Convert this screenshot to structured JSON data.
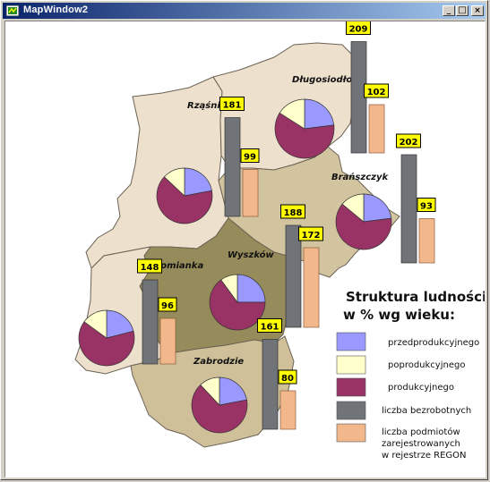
{
  "window": {
    "title": "MapWindow2",
    "buttons": {
      "minimize": "_",
      "maximize": "□",
      "close": "×"
    }
  },
  "map": {
    "colors": {
      "rzasnik": "#ede0cc",
      "dlugosiodlo": "#ede0cc",
      "somianka": "#ede0cc",
      "branszczyk": "#d3c4a0",
      "zabrodzie": "#cfc09a",
      "wyszkow": "#968b5a",
      "pre": "#9999ff",
      "post": "#ffffcc",
      "prod": "#993366",
      "unemp": "#707478",
      "regon": "#f2b88c",
      "label_bg": "#ffff00"
    },
    "regions": [
      {
        "name": "Rząśnik",
        "pie": [
          22,
          13,
          65
        ],
        "unemployed": 181,
        "regon": 99
      },
      {
        "name": "Długosiodło",
        "pie": [
          23,
          16,
          61
        ],
        "unemployed": 209,
        "regon": 102
      },
      {
        "name": "Brańszczyk",
        "pie": [
          23,
          14,
          63
        ],
        "unemployed": 202,
        "regon": 93
      },
      {
        "name": "Wyszków",
        "pie": [
          25,
          10,
          65
        ],
        "unemployed": 188,
        "regon": 172
      },
      {
        "name": "Somianka",
        "pie": [
          21,
          15,
          64
        ],
        "unemployed": 148,
        "regon": 96
      },
      {
        "name": "Zabrodzie",
        "pie": [
          22,
          12,
          66
        ],
        "unemployed": 161,
        "regon": 80
      }
    ]
  },
  "legend": {
    "title_line1": "Struktura ludności",
    "title_line2": "w % wg wieku:",
    "items": {
      "pre": "przedprodukcyjnego",
      "post": "poprodukcyjnego",
      "prod": "produkcyjnego",
      "unemp": "liczba bezrobotnych",
      "regon_1": "liczba podmiotów",
      "regon_2": "zarejestrowanych",
      "regon_3": "w rejestrze REGON"
    }
  }
}
